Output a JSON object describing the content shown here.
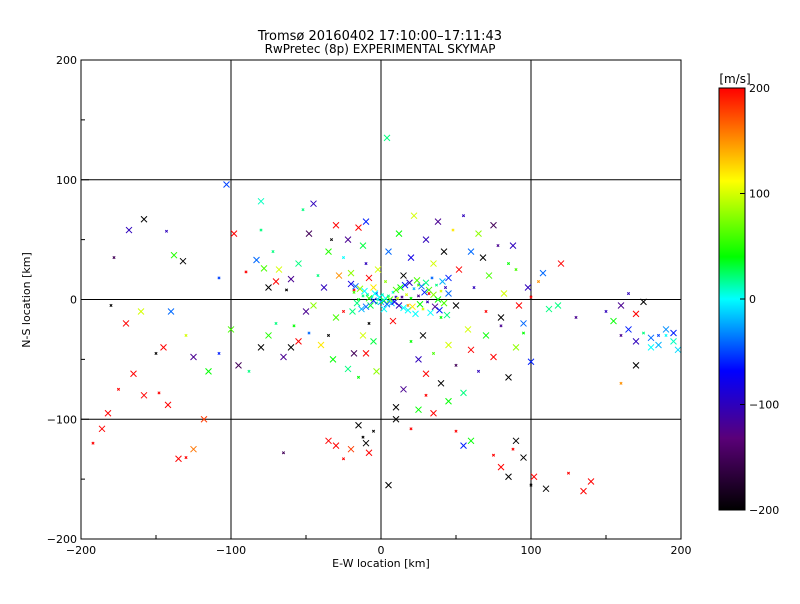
{
  "title": "Tromsø 20160402 17:10:00–17:11:43",
  "subtitle": "RwPretec (8p) EXPERIMENTAL SKYMAP",
  "chart_data": {
    "type": "scatter",
    "title": "Tromsø 20160402 17:10:00–17:11:43",
    "subtitle": "RwPretec (8p) EXPERIMENTAL SKYMAP",
    "xlabel": "E-W location [km]",
    "ylabel": "N-S location [km]",
    "xlim": [
      -200,
      200
    ],
    "ylim": [
      -200,
      200
    ],
    "xticks": [
      "−200",
      "−100",
      "0",
      "100",
      "200"
    ],
    "yticks": [
      "−200",
      "−100",
      "0",
      "100",
      "200"
    ],
    "xtick_values": [
      -200,
      -100,
      0,
      100,
      200
    ],
    "ytick_values": [
      -200,
      -100,
      0,
      100,
      200
    ],
    "grid": true,
    "colorbar": {
      "label": "[m/s]",
      "range": [
        -200,
        200
      ],
      "tick_values": [
        200,
        100,
        0,
        -100,
        -200
      ],
      "tick_labels": [
        "200",
        "100",
        "0",
        "−100",
        "−200"
      ],
      "colormap": [
        "#000000",
        "#5a0078",
        "#0000ff",
        "#00ffff",
        "#00ff00",
        "#ffff00",
        "#ff0000"
      ]
    },
    "points": [
      [
        -178,
        35,
        -150
      ],
      [
        -168,
        58,
        -100
      ],
      [
        -158,
        67,
        -200
      ],
      [
        -143,
        57,
        -100
      ],
      [
        -138,
        37,
        50
      ],
      [
        -132,
        32,
        -200
      ],
      [
        -108,
        18,
        -50
      ],
      [
        -103,
        96,
        -50
      ],
      [
        -98,
        55,
        200
      ],
      [
        -90,
        23,
        200
      ],
      [
        -83,
        33,
        -40
      ],
      [
        -80,
        82,
        10
      ],
      [
        -80,
        58,
        20
      ],
      [
        -78,
        26,
        60
      ],
      [
        -75,
        10,
        -200
      ],
      [
        -72,
        40,
        20
      ],
      [
        -70,
        15,
        200
      ],
      [
        -68,
        25,
        100
      ],
      [
        -63,
        8,
        -200
      ],
      [
        -60,
        17,
        -120
      ],
      [
        -55,
        30,
        20
      ],
      [
        -52,
        75,
        20
      ],
      [
        -48,
        55,
        -150
      ],
      [
        -45,
        80,
        -100
      ],
      [
        -42,
        20,
        20
      ],
      [
        -38,
        10,
        -100
      ],
      [
        -35,
        40,
        50
      ],
      [
        -33,
        50,
        -200
      ],
      [
        -30,
        62,
        200
      ],
      [
        -28,
        20,
        150
      ],
      [
        -25,
        35,
        0
      ],
      [
        -22,
        50,
        -120
      ],
      [
        -20,
        22,
        80
      ],
      [
        -18,
        8,
        200
      ],
      [
        -15,
        60,
        200
      ],
      [
        -12,
        45,
        30
      ],
      [
        -10,
        30,
        -100
      ],
      [
        -8,
        18,
        200
      ],
      [
        -5,
        10,
        120
      ],
      [
        -3,
        5,
        -50
      ],
      [
        -2,
        25,
        100
      ],
      [
        -10,
        65,
        -60
      ],
      [
        -180,
        -5,
        -200
      ],
      [
        -170,
        -20,
        200
      ],
      [
        -160,
        -10,
        100
      ],
      [
        -150,
        -45,
        -200
      ],
      [
        -145,
        -40,
        200
      ],
      [
        -140,
        -10,
        -40
      ],
      [
        -130,
        -30,
        100
      ],
      [
        -125,
        -48,
        -120
      ],
      [
        -115,
        -60,
        40
      ],
      [
        -108,
        -45,
        -60
      ],
      [
        -100,
        -25,
        60
      ],
      [
        -95,
        -55,
        -150
      ],
      [
        -88,
        -60,
        20
      ],
      [
        -80,
        -40,
        -200
      ],
      [
        -75,
        -30,
        50
      ],
      [
        -70,
        -20,
        20
      ],
      [
        -65,
        -48,
        -120
      ],
      [
        -60,
        -40,
        -200
      ],
      [
        -58,
        -22,
        40
      ],
      [
        -55,
        -35,
        200
      ],
      [
        -50,
        -10,
        -120
      ],
      [
        -48,
        -28,
        -40
      ],
      [
        -45,
        -5,
        80
      ],
      [
        -40,
        -38,
        120
      ],
      [
        -35,
        -30,
        -200
      ],
      [
        -32,
        -50,
        40
      ],
      [
        -30,
        -15,
        60
      ],
      [
        -25,
        -10,
        200
      ],
      [
        -22,
        -58,
        20
      ],
      [
        -18,
        -45,
        -150
      ],
      [
        -15,
        -65,
        40
      ],
      [
        -12,
        -30,
        100
      ],
      [
        -10,
        -45,
        200
      ],
      [
        -8,
        -20,
        -200
      ],
      [
        -5,
        -35,
        30
      ],
      [
        -3,
        -60,
        80
      ],
      [
        -192,
        -120,
        200
      ],
      [
        -186,
        -108,
        200
      ],
      [
        -182,
        -95,
        200
      ],
      [
        -175,
        -75,
        200
      ],
      [
        -165,
        -62,
        200
      ],
      [
        -158,
        -80,
        200
      ],
      [
        -148,
        -78,
        200
      ],
      [
        -142,
        -88,
        200
      ],
      [
        -135,
        -133,
        200
      ],
      [
        -130,
        -132,
        200
      ],
      [
        -125,
        -125,
        160
      ],
      [
        -118,
        -100,
        180
      ],
      [
        -65,
        -128,
        -150
      ],
      [
        -35,
        -118,
        200
      ],
      [
        -30,
        -122,
        200
      ],
      [
        -25,
        -133,
        200
      ],
      [
        -20,
        -125,
        180
      ],
      [
        -15,
        -105,
        -200
      ],
      [
        -12,
        -115,
        -200
      ],
      [
        -10,
        -120,
        -200
      ],
      [
        -8,
        -128,
        200
      ],
      [
        -5,
        -110,
        -200
      ],
      [
        5,
        -155,
        -200
      ],
      [
        10,
        -100,
        -200
      ],
      [
        20,
        -108,
        200
      ],
      [
        25,
        -92,
        40
      ],
      [
        35,
        -95,
        200
      ],
      [
        50,
        -110,
        200
      ],
      [
        55,
        -122,
        -60
      ],
      [
        60,
        -118,
        40
      ],
      [
        75,
        -130,
        200
      ],
      [
        80,
        -140,
        200
      ],
      [
        85,
        -148,
        -200
      ],
      [
        88,
        -125,
        200
      ],
      [
        90,
        -118,
        -200
      ],
      [
        95,
        -132,
        -200
      ],
      [
        100,
        -155,
        -200
      ],
      [
        102,
        -148,
        200
      ],
      [
        110,
        -158,
        -200
      ],
      [
        125,
        -145,
        200
      ],
      [
        135,
        -160,
        200
      ],
      [
        140,
        -152,
        200
      ],
      [
        160,
        -70,
        150
      ],
      [
        170,
        -55,
        -200
      ],
      [
        180,
        -40,
        0
      ],
      [
        185,
        -30,
        -50
      ],
      [
        190,
        -25,
        -30
      ],
      [
        195,
        -35,
        10
      ],
      [
        160,
        -30,
        -120
      ],
      [
        165,
        -25,
        -60
      ],
      [
        170,
        -35,
        -100
      ],
      [
        175,
        -28,
        20
      ],
      [
        180,
        -32,
        -40
      ],
      [
        185,
        -38,
        -20
      ],
      [
        190,
        -30,
        0
      ],
      [
        195,
        -28,
        -60
      ],
      [
        198,
        -42,
        -10
      ],
      [
        150,
        -10,
        -100
      ],
      [
        155,
        -18,
        40
      ],
      [
        160,
        -5,
        -120
      ],
      [
        165,
        5,
        -100
      ],
      [
        170,
        -12,
        200
      ],
      [
        175,
        -2,
        -200
      ],
      [
        130,
        -15,
        -120
      ],
      [
        120,
        30,
        200
      ],
      [
        118,
        -5,
        20
      ],
      [
        105,
        15,
        150
      ],
      [
        108,
        22,
        -40
      ],
      [
        112,
        -8,
        20
      ],
      [
        100,
        2,
        200
      ],
      [
        95,
        -20,
        -40
      ],
      [
        98,
        10,
        -100
      ],
      [
        90,
        25,
        60
      ],
      [
        92,
        -5,
        200
      ],
      [
        88,
        45,
        -100
      ],
      [
        85,
        30,
        40
      ],
      [
        80,
        -15,
        -200
      ],
      [
        82,
        5,
        100
      ],
      [
        78,
        45,
        -120
      ],
      [
        75,
        62,
        -150
      ],
      [
        72,
        20,
        60
      ],
      [
        70,
        -10,
        200
      ],
      [
        68,
        35,
        -200
      ],
      [
        65,
        55,
        80
      ],
      [
        62,
        10,
        -100
      ],
      [
        60,
        40,
        -40
      ],
      [
        58,
        -25,
        100
      ],
      [
        55,
        70,
        -100
      ],
      [
        52,
        25,
        200
      ],
      [
        50,
        -5,
        -200
      ],
      [
        48,
        58,
        120
      ],
      [
        45,
        18,
        -60
      ],
      [
        42,
        40,
        -200
      ],
      [
        40,
        -15,
        40
      ],
      [
        38,
        65,
        -120
      ],
      [
        35,
        30,
        100
      ],
      [
        32,
        5,
        200
      ],
      [
        30,
        50,
        -100
      ],
      [
        28,
        -30,
        -200
      ],
      [
        25,
        12,
        60
      ],
      [
        22,
        70,
        100
      ],
      [
        20,
        35,
        -80
      ],
      [
        18,
        -5,
        150
      ],
      [
        15,
        20,
        -200
      ],
      [
        12,
        55,
        40
      ],
      [
        10,
        2,
        -100
      ],
      [
        8,
        -18,
        200
      ],
      [
        5,
        40,
        -40
      ],
      [
        3,
        15,
        80
      ],
      [
        2,
        -8,
        0
      ],
      [
        4,
        135,
        20
      ],
      [
        20,
        -35,
        40
      ],
      [
        25,
        -50,
        -100
      ],
      [
        30,
        -62,
        200
      ],
      [
        35,
        -45,
        60
      ],
      [
        40,
        -70,
        -200
      ],
      [
        45,
        -38,
        100
      ],
      [
        50,
        -55,
        -150
      ],
      [
        55,
        -78,
        20
      ],
      [
        60,
        -42,
        200
      ],
      [
        65,
        -60,
        -100
      ],
      [
        70,
        -30,
        40
      ],
      [
        75,
        -48,
        200
      ],
      [
        80,
        -22,
        -120
      ],
      [
        85,
        -65,
        -200
      ],
      [
        90,
        -40,
        80
      ],
      [
        95,
        -28,
        40
      ],
      [
        100,
        -52,
        -60
      ],
      [
        45,
        -85,
        40
      ],
      [
        30,
        -80,
        200
      ],
      [
        15,
        -75,
        -120
      ],
      [
        10,
        -90,
        -200
      ],
      [
        -2,
        0,
        20
      ],
      [
        -1,
        2,
        0
      ],
      [
        0,
        -2,
        -20
      ],
      [
        1,
        4,
        10
      ],
      [
        2,
        -1,
        40
      ],
      [
        3,
        1,
        0
      ],
      [
        -3,
        -3,
        20
      ],
      [
        4,
        -4,
        -40
      ],
      [
        -4,
        5,
        0
      ],
      [
        5,
        3,
        20
      ],
      [
        -5,
        -1,
        -60
      ],
      [
        6,
        0,
        60
      ],
      [
        -6,
        2,
        10
      ],
      [
        7,
        -3,
        -20
      ],
      [
        -7,
        -5,
        30
      ],
      [
        8,
        6,
        0
      ],
      [
        -8,
        1,
        50
      ],
      [
        9,
        -2,
        -80
      ],
      [
        -9,
        4,
        20
      ],
      [
        10,
        8,
        60
      ],
      [
        -10,
        -6,
        -40
      ],
      [
        11,
        1,
        100
      ],
      [
        -11,
        7,
        0
      ],
      [
        12,
        -5,
        -100
      ],
      [
        -12,
        3,
        20
      ],
      [
        13,
        10,
        40
      ],
      [
        -13,
        -8,
        -20
      ],
      [
        14,
        2,
        -120
      ],
      [
        -14,
        9,
        80
      ],
      [
        15,
        -7,
        0
      ],
      [
        -15,
        0,
        40
      ],
      [
        16,
        12,
        -60
      ],
      [
        -16,
        -3,
        20
      ],
      [
        17,
        4,
        100
      ],
      [
        -17,
        11,
        -40
      ],
      [
        18,
        -9,
        0
      ],
      [
        -18,
        6,
        60
      ],
      [
        19,
        14,
        -100
      ],
      [
        -19,
        -10,
        20
      ],
      [
        20,
        1,
        40
      ],
      [
        -20,
        13,
        -80
      ],
      [
        21,
        -6,
        120
      ],
      [
        22,
        9,
        -20
      ],
      [
        23,
        -12,
        0
      ],
      [
        24,
        16,
        60
      ],
      [
        25,
        3,
        -120
      ],
      [
        26,
        -4,
        40
      ],
      [
        27,
        11,
        -40
      ],
      [
        28,
        -8,
        100
      ],
      [
        29,
        6,
        -60
      ],
      [
        30,
        14,
        20
      ],
      [
        31,
        -2,
        -100
      ],
      [
        32,
        8,
        60
      ],
      [
        33,
        -11,
        0
      ],
      [
        34,
        18,
        -40
      ],
      [
        35,
        4,
        80
      ],
      [
        36,
        -6,
        -120
      ],
      [
        37,
        12,
        20
      ],
      [
        38,
        0,
        40
      ],
      [
        39,
        -9,
        -60
      ],
      [
        40,
        7,
        100
      ],
      [
        41,
        15,
        -20
      ],
      [
        42,
        -3,
        60
      ],
      [
        43,
        10,
        -100
      ],
      [
        44,
        -13,
        20
      ],
      [
        45,
        5,
        -40
      ]
    ]
  }
}
